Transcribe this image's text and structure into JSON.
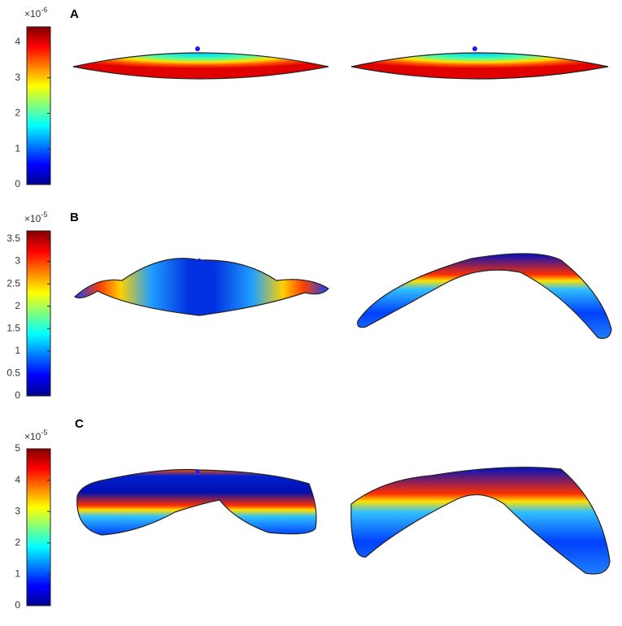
{
  "panels": [
    {
      "label": "A",
      "multiplier": "×10",
      "exponent": "-6",
      "colorbar": {
        "lim": [
          0,
          4.43
        ],
        "ticks": [
          0,
          1,
          2,
          3,
          4
        ]
      }
    },
    {
      "label": "B",
      "multiplier": "×10",
      "exponent": "-5",
      "colorbar": {
        "lim": [
          0,
          3.68
        ],
        "ticks": [
          0,
          0.5,
          1,
          1.5,
          2,
          2.5,
          3,
          3.5
        ]
      }
    },
    {
      "label": "C",
      "multiplier": "×10",
      "exponent": "-5",
      "colorbar": {
        "lim": [
          0,
          5
        ],
        "ticks": [
          0,
          1,
          2,
          3,
          4,
          5
        ]
      }
    }
  ]
}
